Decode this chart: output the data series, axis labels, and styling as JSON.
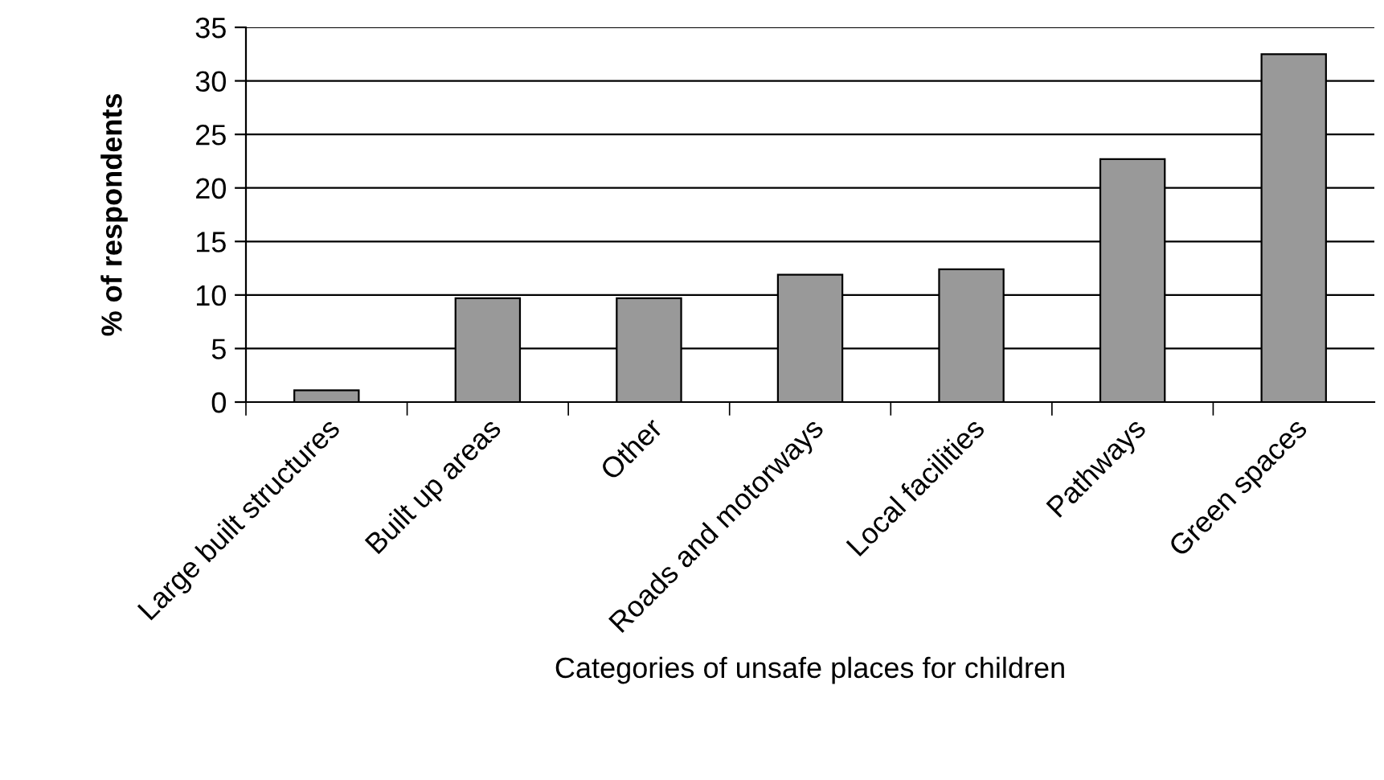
{
  "chart_data": {
    "type": "bar",
    "xlabel": "Categories of unsafe places for children",
    "ylabel": "% of respondents",
    "categories": [
      "Large built structures",
      "Built up areas",
      "Other",
      "Roads and motorways",
      "Local facilities",
      "Pathways",
      "Green spaces"
    ],
    "values": [
      1.1,
      9.7,
      9.7,
      11.9,
      12.4,
      22.7,
      32.5
    ],
    "color": "#999999",
    "ylim": [
      0,
      35
    ],
    "yticks": [
      0,
      5,
      10,
      15,
      20,
      25,
      30,
      35
    ],
    "grid": "y",
    "legend": false
  }
}
